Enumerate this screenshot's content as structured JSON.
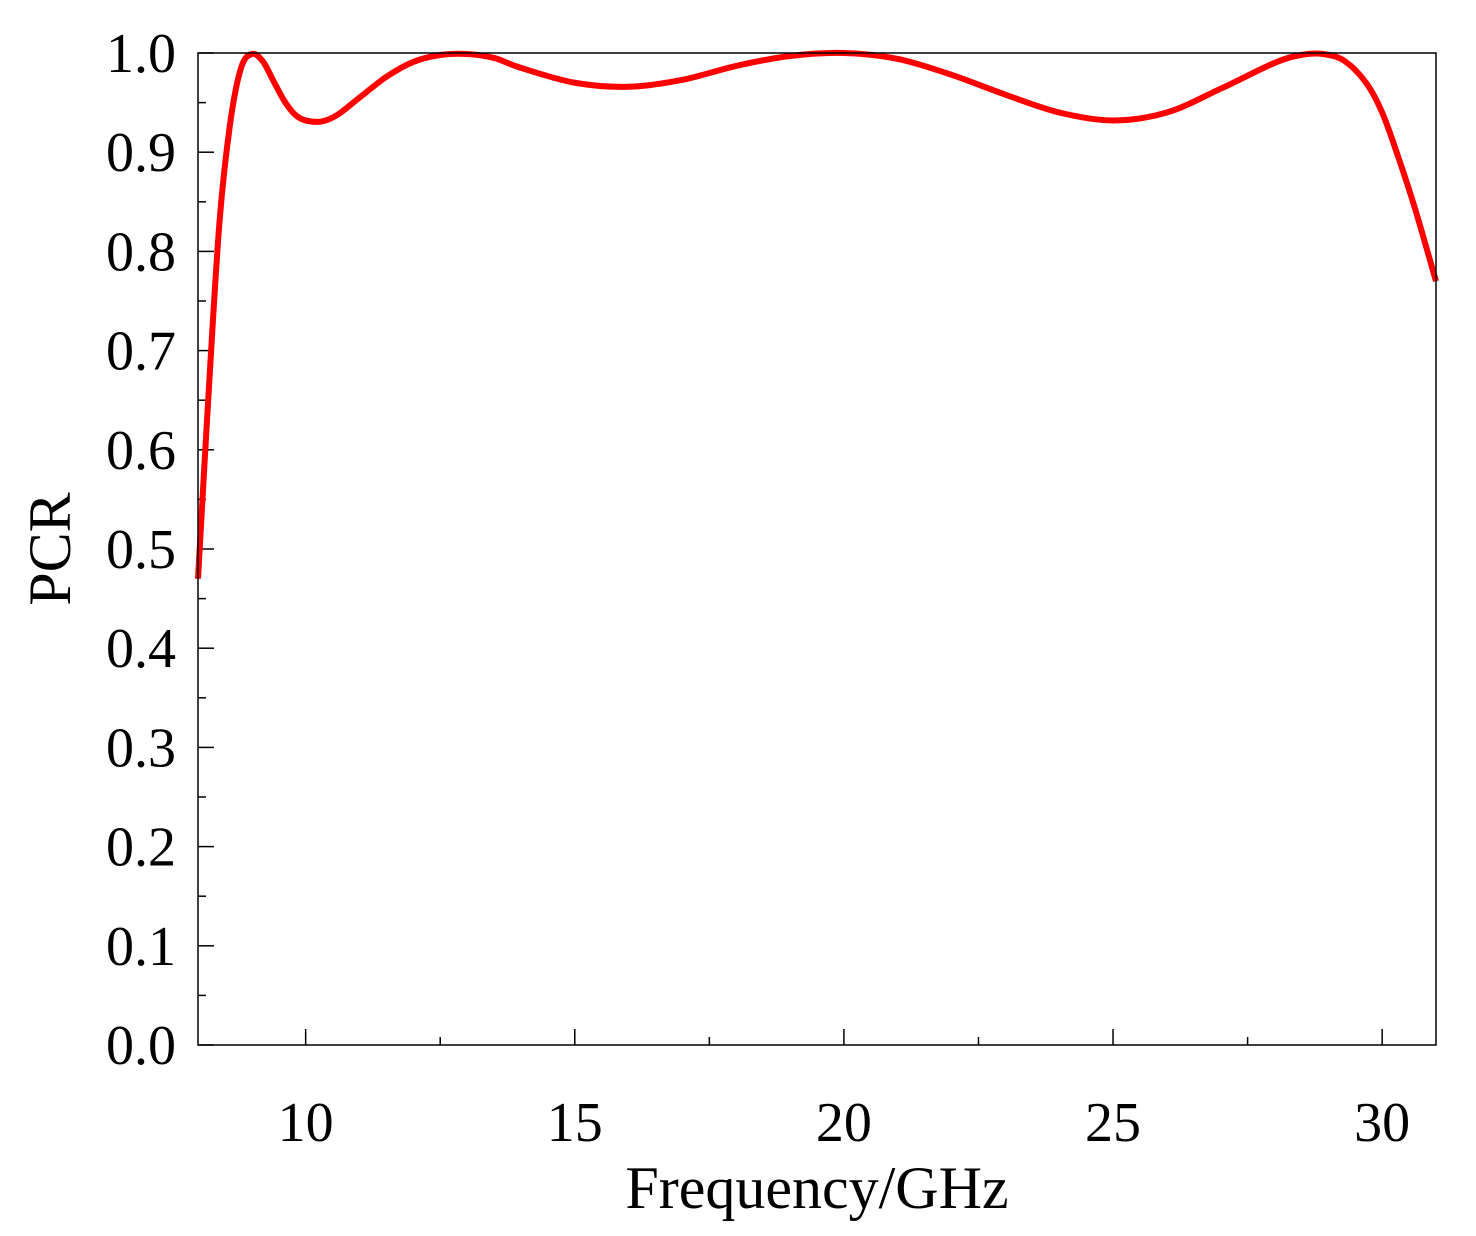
{
  "chart_data": {
    "type": "line",
    "title": "",
    "xlabel": "Frequency/GHz",
    "ylabel": "PCR",
    "xlim": [
      8,
      31
    ],
    "ylim": [
      0.0,
      1.0
    ],
    "x_ticks": [
      10,
      15,
      20,
      25,
      30
    ],
    "x_tick_labels": [
      "10",
      "15",
      "20",
      "25",
      "30"
    ],
    "x_minor_ticks": [
      12.5,
      17.5,
      22.5,
      27.5
    ],
    "y_ticks": [
      0.0,
      0.1,
      0.2,
      0.3,
      0.4,
      0.5,
      0.6,
      0.7,
      0.8,
      0.9,
      1.0
    ],
    "y_tick_labels": [
      "0.0",
      "0.1",
      "0.2",
      "0.3",
      "0.4",
      "0.5",
      "0.6",
      "0.7",
      "0.8",
      "0.9",
      "1.0"
    ],
    "y_minor_ticks": [
      0.05,
      0.15,
      0.25,
      0.35,
      0.45,
      0.55,
      0.65,
      0.75,
      0.85,
      0.95
    ],
    "grid": false,
    "line_color": "#ff0000",
    "series": [
      {
        "x": [
          8.0,
          8.2,
          8.4,
          8.6,
          8.8,
          9.0,
          9.2,
          9.4,
          9.6,
          9.8,
          10.0,
          10.3,
          10.6,
          11.0,
          11.5,
          12.0,
          12.5,
          13.0,
          13.5,
          14.0,
          15.0,
          16.0,
          17.0,
          18.0,
          19.0,
          20.0,
          21.0,
          22.0,
          23.0,
          24.0,
          25.0,
          26.0,
          27.0,
          28.0,
          28.5,
          28.9,
          29.3,
          29.7,
          30.0,
          30.3,
          30.6,
          31.0
        ],
        "y": [
          0.47,
          0.66,
          0.83,
          0.93,
          0.985,
          0.999,
          0.992,
          0.972,
          0.952,
          0.938,
          0.932,
          0.931,
          0.938,
          0.955,
          0.976,
          0.991,
          0.998,
          0.999,
          0.995,
          0.985,
          0.97,
          0.966,
          0.973,
          0.987,
          0.997,
          1.0,
          0.994,
          0.978,
          0.958,
          0.94,
          0.932,
          0.94,
          0.964,
          0.99,
          0.998,
          0.999,
          0.992,
          0.97,
          0.94,
          0.895,
          0.845,
          0.77
        ]
      }
    ]
  }
}
